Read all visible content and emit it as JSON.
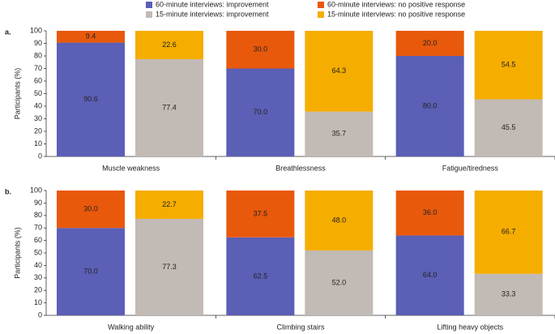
{
  "chart_data": {
    "type": "stacked_bar",
    "ylim": [
      0,
      100
    ],
    "yticks": [
      0,
      10,
      20,
      30,
      40,
      50,
      60,
      70,
      80,
      90,
      100
    ],
    "series": [
      {
        "name": "60-minute interviews: improvement",
        "color": "#5b5fb5"
      },
      {
        "name": "60-minute interviews: no positive response",
        "color": "#e8590c"
      },
      {
        "name": "15-minute interviews: improvement",
        "color": "#c2bab4"
      },
      {
        "name": "15-minute interviews: no positive response",
        "color": "#f5ad00"
      }
    ],
    "panels": [
      {
        "label": "a.",
        "ylabel": "Participants (%)",
        "categories": [
          "Muscle weakness",
          "Breathlessness",
          "Fatigue/tiredness"
        ],
        "values": [
          [
            90.6,
            70,
            80
          ],
          [
            9.4,
            30,
            20
          ],
          [
            77.4,
            35.7,
            45.5
          ],
          [
            22.6,
            64.3,
            54.5
          ]
        ],
        "value_labels": [
          [
            "90.6",
            "70.0",
            "80.0"
          ],
          [
            "9.4",
            "30.0",
            "20.0"
          ],
          [
            "77.4",
            "35.7",
            "45.5"
          ],
          [
            "22.6",
            "64.3",
            "54.5"
          ]
        ]
      },
      {
        "label": "b.",
        "ylabel": "Participants (%)",
        "categories": [
          "Walking ability",
          "Climbing stairs",
          "Lifting heavy objects"
        ],
        "values": [
          [
            70,
            62.5,
            64
          ],
          [
            30,
            37.5,
            36
          ],
          [
            77.3,
            52,
            33.3
          ],
          [
            22.7,
            48,
            66.7
          ]
        ],
        "value_labels": [
          [
            "70.0",
            "62.5",
            "64.0"
          ],
          [
            "30.0",
            "37.5",
            "36.0"
          ],
          [
            "77.3",
            "52.0",
            "33.3"
          ],
          [
            "22.7",
            "48.0",
            "66.7"
          ]
        ]
      }
    ]
  }
}
